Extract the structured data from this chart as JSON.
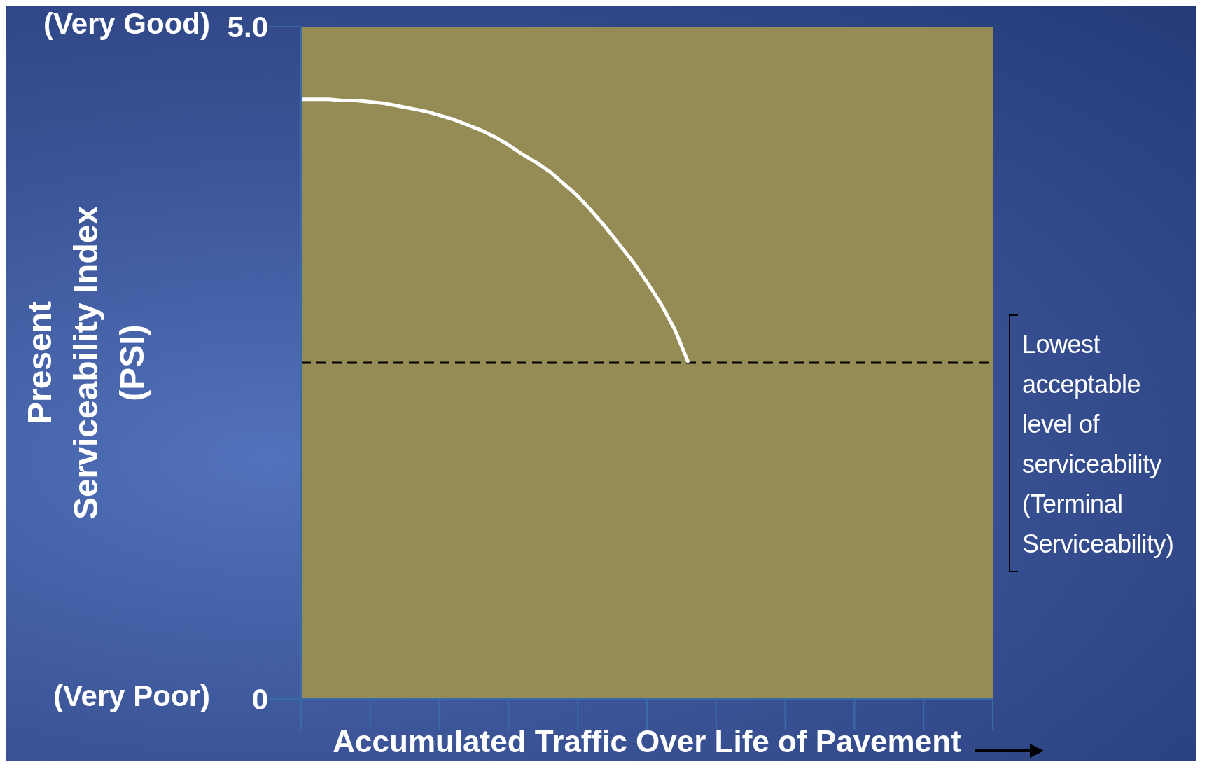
{
  "chart_data": {
    "type": "line",
    "xlabel": "Accumulated Traffic Over Life of Pavement",
    "ylabel": "Present Serviceability Index (PSI)",
    "categories": [
      null,
      null,
      null,
      null,
      null,
      null,
      null,
      null,
      null,
      null,
      null,
      null,
      null,
      null,
      null,
      null,
      null,
      null,
      null,
      null,
      null,
      null,
      null,
      null,
      null,
      null,
      null,
      null,
      null,
      null,
      null,
      null,
      null,
      null,
      null,
      null,
      null,
      null,
      null,
      null,
      null,
      null,
      null,
      null,
      null,
      null,
      null,
      null,
      null,
      null,
      null
    ],
    "series": [
      {
        "color": "#ffffff",
        "values": [
          4.46,
          4.46,
          4.46,
          4.45,
          4.45,
          4.44,
          4.43,
          4.41,
          4.39,
          4.37,
          4.34,
          4.31,
          4.27,
          4.23,
          4.18,
          4.12,
          4.05,
          3.99,
          3.92,
          3.83,
          3.74,
          3.63,
          3.51,
          3.38,
          3.25,
          3.1,
          2.94,
          2.75,
          2.5,
          null,
          null,
          null,
          null,
          null,
          null,
          null,
          null,
          null,
          null,
          null,
          null,
          null,
          null,
          null,
          null,
          null,
          null,
          null,
          null,
          null,
          null
        ]
      }
    ],
    "ylim": [
      0,
      5
    ],
    "yticks": [
      0,
      {
        "value": 5,
        "label": "5.0"
      }
    ],
    "tick_labels": "y",
    "marker": "none",
    "line_style": "solid",
    "legend": false,
    "ref_lines": [
      {
        "axis": "y",
        "value": 2.5,
        "label": "Lowest acceptable level of serviceability (Terminal Serviceability)",
        "color": "#000000",
        "line_style": "dashed"
      }
    ],
    "annotations": [
      "(Very Good)",
      "(Very Poor)"
    ]
  }
}
